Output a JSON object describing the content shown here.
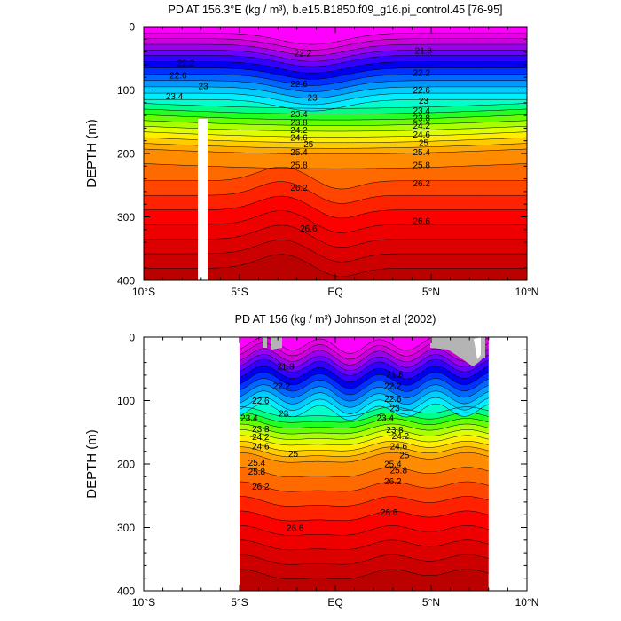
{
  "chart_data": [
    {
      "type": "heatmap",
      "title": "PD AT 156.3°E (kg / m³), b.e15.B1850.f09_g16.pi_control.45 [76-95]",
      "xlabel": "",
      "ylabel": "DEPTH (m)",
      "xlim": [
        -10,
        10
      ],
      "ylim": [
        0,
        400
      ],
      "y_inverted": true,
      "xticks": [
        {
          "value": -10,
          "label": "10°S"
        },
        {
          "value": -5,
          "label": "5°S"
        },
        {
          "value": 0,
          "label": "EQ"
        },
        {
          "value": 5,
          "label": "5°N"
        },
        {
          "value": 10,
          "label": "10°N"
        }
      ],
      "yticks": [
        0,
        100,
        200,
        300,
        400
      ],
      "data_extent_lat": [
        -10,
        10
      ],
      "mask": {
        "lat": [
          -7.1,
          -6.6
        ],
        "depth": [
          145,
          400
        ]
      },
      "contour_levels_step": 0.2,
      "contour_labels": [
        {
          "value": "22.2",
          "lat": -7.8,
          "depth": 57
        },
        {
          "value": "22.6",
          "lat": -8.2,
          "depth": 77
        },
        {
          "value": "23",
          "lat": -6.9,
          "depth": 94
        },
        {
          "value": "23.4",
          "lat": -8.4,
          "depth": 110
        },
        {
          "value": "22.2",
          "lat": -1.7,
          "depth": 42
        },
        {
          "value": "22.6",
          "lat": -1.9,
          "depth": 90
        },
        {
          "value": "23",
          "lat": -1.2,
          "depth": 112
        },
        {
          "value": "23.4",
          "lat": -1.9,
          "depth": 138
        },
        {
          "value": "23.8",
          "lat": -1.9,
          "depth": 151
        },
        {
          "value": "24.2",
          "lat": -1.9,
          "depth": 163
        },
        {
          "value": "24.6",
          "lat": -1.9,
          "depth": 175
        },
        {
          "value": "25",
          "lat": -1.4,
          "depth": 185
        },
        {
          "value": "25.4",
          "lat": -1.9,
          "depth": 198
        },
        {
          "value": "25.8",
          "lat": -1.9,
          "depth": 218
        },
        {
          "value": "26.2",
          "lat": -1.9,
          "depth": 254
        },
        {
          "value": "26.6",
          "lat": -1.4,
          "depth": 318
        },
        {
          "value": "21.8",
          "lat": 4.6,
          "depth": 38
        },
        {
          "value": "22.2",
          "lat": 4.5,
          "depth": 73
        },
        {
          "value": "22.6",
          "lat": 4.5,
          "depth": 100
        },
        {
          "value": "23",
          "lat": 4.6,
          "depth": 117
        },
        {
          "value": "23.4",
          "lat": 4.5,
          "depth": 132
        },
        {
          "value": "23.8",
          "lat": 4.5,
          "depth": 144
        },
        {
          "value": "24.2",
          "lat": 4.5,
          "depth": 156
        },
        {
          "value": "24.6",
          "lat": 4.5,
          "depth": 170
        },
        {
          "value": "25",
          "lat": 4.6,
          "depth": 183
        },
        {
          "value": "25.4",
          "lat": 4.5,
          "depth": 198
        },
        {
          "value": "25.8",
          "lat": 4.5,
          "depth": 218
        },
        {
          "value": "26.2",
          "lat": 4.5,
          "depth": 247
        },
        {
          "value": "26.6",
          "lat": 4.5,
          "depth": 306
        }
      ]
    },
    {
      "type": "heatmap",
      "title": "PD AT 156 (kg / m³) Johnson et al (2002)",
      "xlabel": "",
      "ylabel": "DEPTH (m)",
      "xlim": [
        -10,
        10
      ],
      "ylim": [
        0,
        400
      ],
      "y_inverted": true,
      "xticks": [
        {
          "value": -10,
          "label": "10°S"
        },
        {
          "value": -5,
          "label": "5°S"
        },
        {
          "value": 0,
          "label": "EQ"
        },
        {
          "value": 5,
          "label": "5°N"
        },
        {
          "value": 10,
          "label": "10°N"
        }
      ],
      "yticks": [
        0,
        100,
        200,
        300,
        400
      ],
      "data_extent_lat": [
        -5,
        8
      ],
      "missing_color": "#b4b4b4",
      "contour_levels_step": 0.2,
      "contour_labels": [
        {
          "value": "21.8",
          "lat": -2.6,
          "depth": 46
        },
        {
          "value": "22.2",
          "lat": -2.8,
          "depth": 77
        },
        {
          "value": "22.6",
          "lat": -3.9,
          "depth": 100
        },
        {
          "value": "23",
          "lat": -2.7,
          "depth": 120
        },
        {
          "value": "23.4",
          "lat": -4.5,
          "depth": 127
        },
        {
          "value": "23.8",
          "lat": -3.9,
          "depth": 145
        },
        {
          "value": "24.2",
          "lat": -3.9,
          "depth": 157
        },
        {
          "value": "24.6",
          "lat": -3.9,
          "depth": 172
        },
        {
          "value": "25",
          "lat": -2.2,
          "depth": 184
        },
        {
          "value": "25.4",
          "lat": -4.1,
          "depth": 198
        },
        {
          "value": "25.8",
          "lat": -4.1,
          "depth": 212
        },
        {
          "value": "26.2",
          "lat": -3.9,
          "depth": 236
        },
        {
          "value": "26.6",
          "lat": -2.1,
          "depth": 301
        },
        {
          "value": "21.8",
          "lat": 3.1,
          "depth": 59
        },
        {
          "value": "22.2",
          "lat": 3.0,
          "depth": 77
        },
        {
          "value": "22.6",
          "lat": 3.0,
          "depth": 97
        },
        {
          "value": "23",
          "lat": 3.1,
          "depth": 112
        },
        {
          "value": "23.4",
          "lat": 2.6,
          "depth": 127
        },
        {
          "value": "23.8",
          "lat": 3.1,
          "depth": 146
        },
        {
          "value": "24.2",
          "lat": 3.4,
          "depth": 156
        },
        {
          "value": "24.6",
          "lat": 3.3,
          "depth": 172
        },
        {
          "value": "25",
          "lat": 3.6,
          "depth": 186
        },
        {
          "value": "25.4",
          "lat": 3.0,
          "depth": 200
        },
        {
          "value": "25.8",
          "lat": 3.3,
          "depth": 210
        },
        {
          "value": "26.2",
          "lat": 3.0,
          "depth": 227
        },
        {
          "value": "26.6",
          "lat": 2.8,
          "depth": 276
        }
      ]
    }
  ]
}
